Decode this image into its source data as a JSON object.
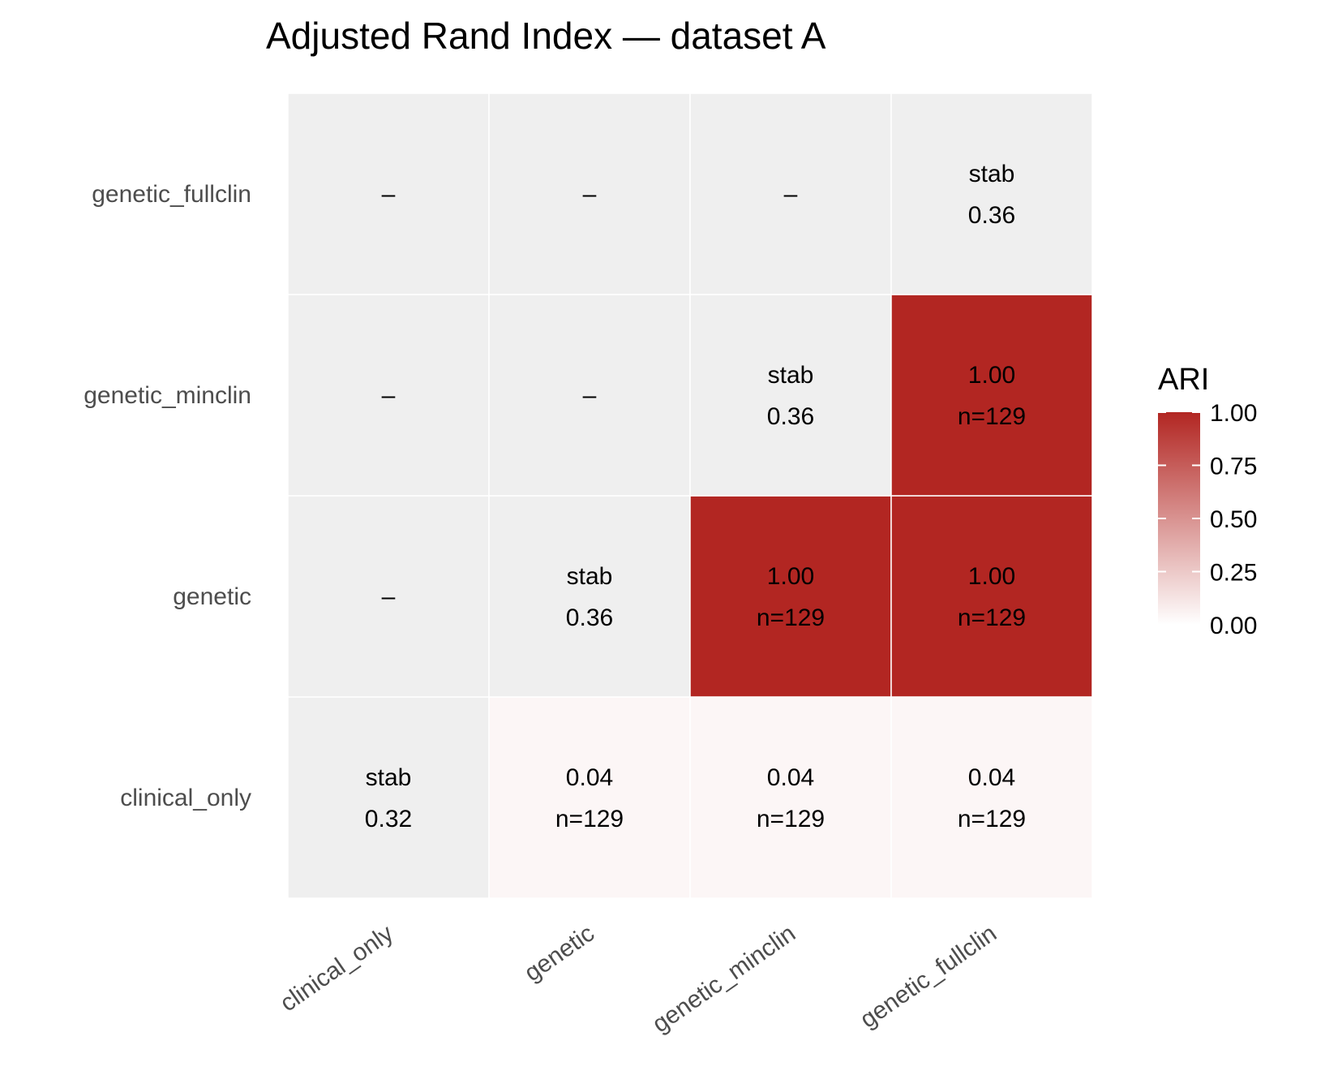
{
  "chart_data": {
    "type": "heatmap",
    "title": "Adjusted Rand Index — dataset A",
    "x_categories": [
      "clinical_only",
      "genetic",
      "genetic_minclin",
      "genetic_fullclin"
    ],
    "y_categories": [
      "clinical_only",
      "genetic",
      "genetic_minclin",
      "genetic_fullclin"
    ],
    "cells": [
      {
        "x": "clinical_only",
        "y": "clinical_only",
        "value": null,
        "line1": "stab",
        "line2": "0.32"
      },
      {
        "x": "genetic",
        "y": "clinical_only",
        "value": 0.04,
        "line1": "0.04",
        "line2": "n=129"
      },
      {
        "x": "genetic_minclin",
        "y": "clinical_only",
        "value": 0.04,
        "line1": "0.04",
        "line2": "n=129"
      },
      {
        "x": "genetic_fullclin",
        "y": "clinical_only",
        "value": 0.04,
        "line1": "0.04",
        "line2": "n=129"
      },
      {
        "x": "clinical_only",
        "y": "genetic",
        "value": null,
        "line1": "–",
        "line2": ""
      },
      {
        "x": "genetic",
        "y": "genetic",
        "value": null,
        "line1": "stab",
        "line2": "0.36"
      },
      {
        "x": "genetic_minclin",
        "y": "genetic",
        "value": 1.0,
        "line1": "1.00",
        "line2": "n=129"
      },
      {
        "x": "genetic_fullclin",
        "y": "genetic",
        "value": 1.0,
        "line1": "1.00",
        "line2": "n=129"
      },
      {
        "x": "clinical_only",
        "y": "genetic_minclin",
        "value": null,
        "line1": "–",
        "line2": ""
      },
      {
        "x": "genetic",
        "y": "genetic_minclin",
        "value": null,
        "line1": "–",
        "line2": ""
      },
      {
        "x": "genetic_minclin",
        "y": "genetic_minclin",
        "value": null,
        "line1": "stab",
        "line2": "0.36"
      },
      {
        "x": "genetic_fullclin",
        "y": "genetic_minclin",
        "value": 1.0,
        "line1": "1.00",
        "line2": "n=129"
      },
      {
        "x": "clinical_only",
        "y": "genetic_fullclin",
        "value": null,
        "line1": "–",
        "line2": ""
      },
      {
        "x": "genetic",
        "y": "genetic_fullclin",
        "value": null,
        "line1": "–",
        "line2": ""
      },
      {
        "x": "genetic_minclin",
        "y": "genetic_fullclin",
        "value": null,
        "line1": "–",
        "line2": ""
      },
      {
        "x": "genetic_fullclin",
        "y": "genetic_fullclin",
        "value": null,
        "line1": "stab",
        "line2": "0.36"
      }
    ],
    "legend": {
      "title": "ARI",
      "range": [
        0,
        1
      ],
      "ticks": [
        "0.00",
        "0.25",
        "0.50",
        "0.75",
        "1.00"
      ],
      "low_color": "#ffffff",
      "high_color": "#b22622",
      "placement": "right"
    },
    "na_color": "#efefef"
  }
}
